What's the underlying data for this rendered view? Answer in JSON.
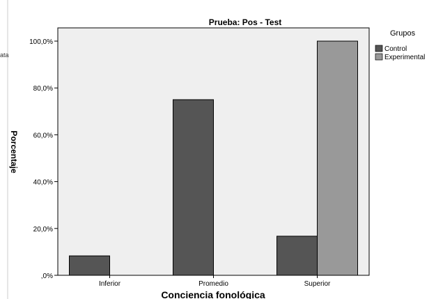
{
  "colors": {
    "control": "#555555",
    "experimental": "#999999",
    "plot_background": "#efefef"
  },
  "chart_data": {
    "type": "bar",
    "title": "Prueba: Pos - Test",
    "xlabel": "Conciencia fonológica",
    "ylabel": "Porcentaje",
    "categories": [
      "Inferior",
      "Promedio",
      "Superior"
    ],
    "series": [
      {
        "name": "Control",
        "values": [
          8.3,
          75.0,
          16.7
        ]
      },
      {
        "name": "Experimental",
        "values": [
          0,
          0,
          100.0
        ]
      }
    ],
    "ylim": [
      0,
      105
    ],
    "yticks": [
      0,
      20,
      40,
      60,
      80,
      100
    ],
    "ytick_labels": [
      ",0%",
      "20,0%",
      "40,0%",
      "60,0%",
      "80,0%",
      "100,0%"
    ],
    "legend_title": "Grupos",
    "legend_position": "top-right",
    "grid": false
  },
  "left_fragments": {
    "top": "ata",
    "mid": "Porcentaje"
  }
}
